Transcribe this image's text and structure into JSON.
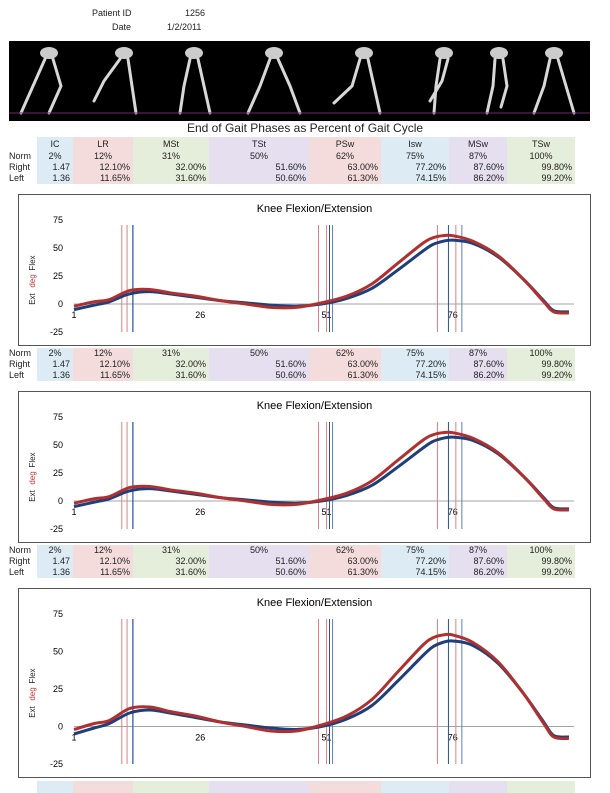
{
  "header": {
    "patient_id_label": "Patient ID",
    "patient_id": "1256",
    "date_label": "Date",
    "date": "1/2/2011"
  },
  "page_title": "End of Gait Phases as Percent of Gait Cycle",
  "phases": [
    "IC",
    "LR",
    "MSt",
    "TSt",
    "PSw",
    "Isw",
    "MSw",
    "TSw"
  ],
  "phase_colors": [
    "#dcebf4",
    "#f4dcdc",
    "#e4eedb",
    "#e5dff0",
    "#f4dcdc",
    "#dcebf4",
    "#e5dff0",
    "#e4eedb"
  ],
  "row_labels": {
    "norm": "Norm",
    "right": "Right",
    "left": "Left"
  },
  "norm": [
    "2%",
    "12%",
    "31%",
    "50%",
    "62%",
    "75%",
    "87%",
    "100%"
  ],
  "right": [
    "1.47",
    "12.10%",
    "32.00%",
    "51.60%",
    "63.00%",
    "77.20%",
    "87.60%",
    "99.80%"
  ],
  "left": [
    "1.36",
    "11.65%",
    "31.60%",
    "50.60%",
    "61.30%",
    "74.15%",
    "86.20%",
    "99.20%"
  ],
  "chart_data": [
    {
      "type": "line",
      "title": "Knee Flexion/Extension",
      "ylabel_ext": "Ext",
      "ylabel_deg": "deg",
      "ylabel_flex": "Flex",
      "ylim": [
        -25,
        75
      ],
      "yticks": [
        "75",
        "50",
        "25",
        "0",
        "-25"
      ],
      "xlim": [
        1,
        100
      ],
      "xticks": [
        "1",
        "26",
        "51",
        "76"
      ],
      "series": [
        {
          "name": "Right",
          "color": "#1f3f7a",
          "x": [
            1,
            5,
            8,
            12,
            16,
            20,
            25,
            30,
            35,
            40,
            45,
            50,
            55,
            60,
            65,
            70,
            72,
            74,
            76,
            80,
            85,
            90,
            94,
            96,
            99
          ],
          "y": [
            -5,
            -1,
            2,
            9,
            11,
            9,
            6,
            3,
            1,
            -1,
            -2,
            0,
            5,
            14,
            30,
            47,
            53,
            56,
            57,
            54,
            42,
            22,
            3,
            -6,
            -7
          ]
        },
        {
          "name": "Left",
          "color": "#b03030",
          "x": [
            1,
            5,
            8,
            12,
            16,
            20,
            25,
            30,
            35,
            40,
            45,
            50,
            55,
            60,
            65,
            70,
            72,
            74,
            76,
            80,
            85,
            90,
            94,
            96,
            99
          ],
          "y": [
            -2,
            2,
            4,
            12,
            13,
            10,
            7,
            3,
            0,
            -3,
            -3,
            1,
            7,
            18,
            36,
            54,
            59,
            61,
            61,
            56,
            43,
            22,
            2,
            -7,
            -8
          ]
        }
      ],
      "vlines_right": [
        12.1,
        51.6,
        77.2
      ],
      "vlines_left": [
        11.65,
        50.6,
        74.15
      ]
    },
    {
      "type": "line",
      "title": "Knee Flexion/Extension",
      "ylabel_ext": "Ext",
      "ylabel_deg": "deg",
      "ylabel_flex": "Flex",
      "ylim": [
        -25,
        75
      ],
      "yticks": [
        "75",
        "50",
        "25",
        "0",
        "-25"
      ],
      "xlim": [
        1,
        100
      ],
      "xticks": [
        "1",
        "26",
        "51",
        "76"
      ],
      "series": [
        {
          "name": "Right",
          "color": "#1f3f7a",
          "x": [
            1,
            5,
            8,
            12,
            16,
            20,
            25,
            30,
            35,
            40,
            45,
            50,
            55,
            60,
            65,
            70,
            72,
            74,
            76,
            80,
            85,
            90,
            94,
            96,
            99
          ],
          "y": [
            -5,
            -1,
            2,
            9,
            11,
            9,
            6,
            3,
            1,
            -1,
            -2,
            0,
            5,
            14,
            30,
            47,
            53,
            56,
            57,
            54,
            42,
            22,
            3,
            -6,
            -7
          ]
        },
        {
          "name": "Left",
          "color": "#b03030",
          "x": [
            1,
            5,
            8,
            12,
            16,
            20,
            25,
            30,
            35,
            40,
            45,
            50,
            55,
            60,
            65,
            70,
            72,
            74,
            76,
            80,
            85,
            90,
            94,
            96,
            99
          ],
          "y": [
            -2,
            2,
            4,
            12,
            13,
            10,
            7,
            3,
            0,
            -3,
            -3,
            1,
            7,
            18,
            36,
            54,
            59,
            61,
            61,
            56,
            43,
            22,
            2,
            -7,
            -8
          ]
        }
      ],
      "vlines_right": [
        12.1,
        51.6,
        77.2
      ],
      "vlines_left": [
        11.65,
        50.6,
        74.15
      ]
    },
    {
      "type": "line",
      "title": "Knee Flexion/Extension",
      "ylabel_ext": "Ext",
      "ylabel_deg": "deg",
      "ylabel_flex": "Flex",
      "ylim": [
        -25,
        75
      ],
      "yticks": [
        "75",
        "50",
        "25",
        "0",
        "-25"
      ],
      "xlim": [
        1,
        100
      ],
      "xticks": [
        "1",
        "26",
        "51",
        "76"
      ],
      "series": [
        {
          "name": "Right",
          "color": "#1f3f7a",
          "x": [
            1,
            5,
            8,
            12,
            16,
            20,
            25,
            30,
            35,
            40,
            45,
            50,
            55,
            60,
            65,
            70,
            72,
            74,
            76,
            80,
            85,
            90,
            94,
            96,
            99
          ],
          "y": [
            -5,
            -1,
            2,
            9,
            11,
            9,
            6,
            3,
            1,
            -1,
            -2,
            0,
            5,
            14,
            30,
            47,
            53,
            56,
            57,
            54,
            42,
            22,
            3,
            -6,
            -7
          ]
        },
        {
          "name": "Left",
          "color": "#b03030",
          "x": [
            1,
            5,
            8,
            12,
            16,
            20,
            25,
            30,
            35,
            40,
            45,
            50,
            55,
            60,
            65,
            70,
            72,
            74,
            76,
            80,
            85,
            90,
            94,
            96,
            99
          ],
          "y": [
            -2,
            2,
            4,
            12,
            13,
            10,
            7,
            3,
            0,
            -3,
            -3,
            1,
            7,
            18,
            36,
            54,
            59,
            61,
            61,
            56,
            43,
            22,
            2,
            -7,
            -8
          ]
        }
      ],
      "vlines_right": [
        12.1,
        51.6,
        77.2
      ],
      "vlines_left": [
        11.65,
        50.6,
        74.15
      ]
    }
  ]
}
